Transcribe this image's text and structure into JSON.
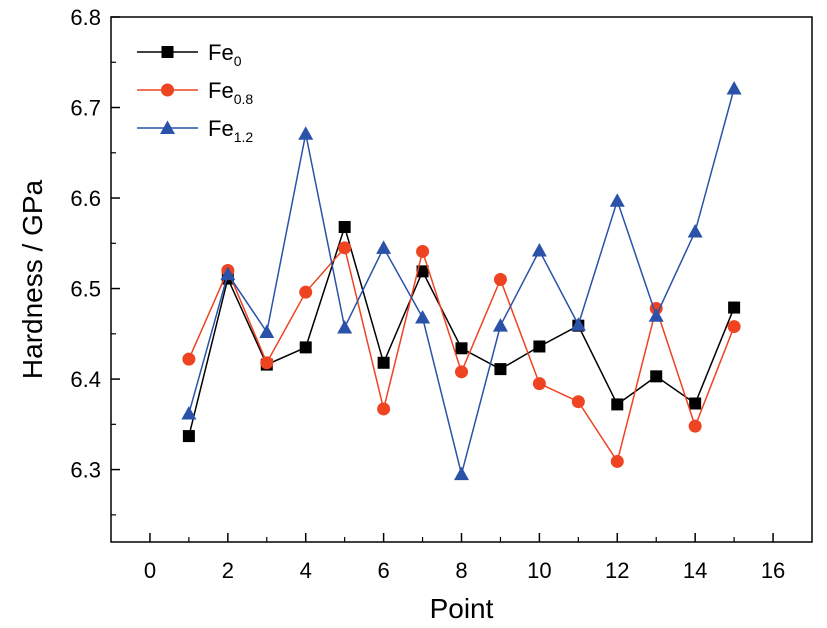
{
  "chart_data": {
    "type": "line",
    "xlabel": "Point",
    "ylabel": "Hardness / GPa",
    "xlim": [
      -1,
      17
    ],
    "ylim": [
      6.22,
      6.8
    ],
    "x_ticks": [
      0,
      2,
      4,
      6,
      8,
      10,
      12,
      14,
      16
    ],
    "x_tick_labels": [
      "0",
      "2",
      "4",
      "6",
      "8",
      "10",
      "12",
      "14",
      "16"
    ],
    "y_ticks": [
      6.3,
      6.4,
      6.5,
      6.6,
      6.7,
      6.8
    ],
    "y_tick_labels": [
      "6.3",
      "6.4",
      "6.5",
      "6.6",
      "6.7",
      "6.8"
    ],
    "grid": false,
    "legend_position": "top-left",
    "x": [
      1,
      2,
      3,
      4,
      5,
      6,
      7,
      8,
      9,
      10,
      11,
      12,
      13,
      14,
      15
    ],
    "series": [
      {
        "name": "Fe",
        "name_sub": "0",
        "color": "#000000",
        "marker": "square",
        "values": [
          6.337,
          6.511,
          6.416,
          6.435,
          6.568,
          6.418,
          6.519,
          6.434,
          6.411,
          6.436,
          6.459,
          6.372,
          6.403,
          6.373,
          6.479
        ]
      },
      {
        "name": "Fe",
        "name_sub": "0.8",
        "color": "#ee4422",
        "marker": "circle",
        "values": [
          6.422,
          6.52,
          6.418,
          6.496,
          6.545,
          6.367,
          6.541,
          6.408,
          6.51,
          6.395,
          6.375,
          6.309,
          6.478,
          6.348,
          6.458
        ]
      },
      {
        "name": "Fe",
        "name_sub": "1.2",
        "color": "#2a52a8",
        "marker": "triangle",
        "values": [
          6.362,
          6.516,
          6.452,
          6.671,
          6.457,
          6.545,
          6.468,
          6.295,
          6.459,
          6.542,
          6.46,
          6.597,
          6.47,
          6.563,
          6.721
        ]
      }
    ]
  }
}
